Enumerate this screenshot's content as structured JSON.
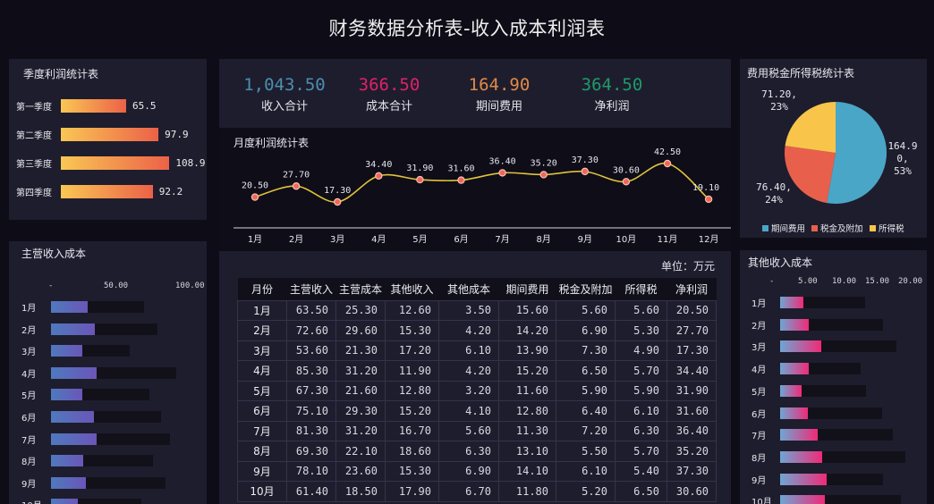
{
  "header": {
    "title": "财务数据分析表-收入成本利润表"
  },
  "quarter_panel": {
    "title": "季度利润统计表",
    "items": [
      {
        "label": "第一季度",
        "value": "65.5",
        "num": 65.5
      },
      {
        "label": "第二季度",
        "value": "97.9",
        "num": 97.9
      },
      {
        "label": "第三季度",
        "value": "108.9",
        "num": 108.9
      },
      {
        "label": "第四季度",
        "value": "92.2",
        "num": 92.2
      }
    ],
    "colors": {
      "start": "#f9c754",
      "end": "#ec6148"
    }
  },
  "kpis": [
    {
      "value": "1,043.50",
      "label": "收入合计",
      "color": "#4a8fb0"
    },
    {
      "value": "366.50",
      "label": "成本合计",
      "color": "#e0206a"
    },
    {
      "value": "164.90",
      "label": "期间费用",
      "color": "#e08a48"
    },
    {
      "value": "364.50",
      "label": "净利润",
      "color": "#1f9a6a"
    }
  ],
  "monthly_chart": {
    "title": "月度利润统计表",
    "months": [
      "1月",
      "2月",
      "3月",
      "4月",
      "5月",
      "6月",
      "7月",
      "8月",
      "9月",
      "10月",
      "11月",
      "12月"
    ],
    "values": [
      "20.50",
      "27.70",
      "17.30",
      "34.40",
      "31.90",
      "31.60",
      "36.40",
      "35.20",
      "37.30",
      "30.60",
      "42.50",
      "19.10"
    ],
    "line_color": "#e2c23a",
    "point_color": "#f0665a"
  },
  "pie_panel": {
    "title": "费用税金所得税统计表",
    "slices": [
      {
        "name": "期间费用",
        "value": "164.90",
        "percent": "53%",
        "label_lines": [
          "164.9",
          "0,",
          "53%"
        ],
        "color": "#4aa6c6"
      },
      {
        "name": "税金及附加",
        "value": "76.40",
        "percent": "24%",
        "label_lines": [
          "76.40,",
          "24%"
        ],
        "color": "#e8604c"
      },
      {
        "name": "所得税",
        "value": "71.20",
        "percent": "23%",
        "label_lines": [
          "71.20,",
          "23%"
        ],
        "color": "#f8c54a"
      }
    ]
  },
  "main_income_panel": {
    "title": "主营收入成本",
    "axis_ticks": [
      "-",
      "50.00",
      "100.00"
    ],
    "months": [
      "1月",
      "2月",
      "3月",
      "4月",
      "5月",
      "6月",
      "7月",
      "8月",
      "9月",
      "10月"
    ],
    "income": [
      63.5,
      72.6,
      53.6,
      85.3,
      67.3,
      75.1,
      81.3,
      69.3,
      78.1,
      61.4
    ],
    "cost": [
      25.3,
      29.6,
      21.3,
      31.2,
      21.6,
      29.3,
      31.2,
      22.1,
      23.6,
      18.5
    ]
  },
  "other_income_panel": {
    "title": "其他收入成本",
    "axis_ticks": [
      "-",
      "5.00",
      "10.00",
      "15.00",
      "20.00"
    ],
    "months": [
      "1月",
      "2月",
      "3月",
      "4月",
      "5月",
      "6月",
      "7月",
      "8月",
      "9月",
      "10月"
    ],
    "income": [
      12.6,
      15.3,
      17.2,
      11.9,
      12.8,
      15.2,
      16.7,
      18.6,
      15.3,
      17.9
    ],
    "cost": [
      3.5,
      4.2,
      6.1,
      4.2,
      3.2,
      4.1,
      5.6,
      6.3,
      6.9,
      6.7
    ]
  },
  "table": {
    "unit": "单位：万元",
    "headers": [
      "月份",
      "主营收入",
      "主营成本",
      "其他收入",
      "其他成本",
      "期间费用",
      "税金及附加",
      "所得税",
      "净利润"
    ],
    "rows": [
      [
        "1月",
        "63.50",
        "25.30",
        "12.60",
        "3.50",
        "15.60",
        "5.60",
        "5.60",
        "20.50"
      ],
      [
        "2月",
        "72.60",
        "29.60",
        "15.30",
        "4.20",
        "14.20",
        "6.90",
        "5.30",
        "27.70"
      ],
      [
        "3月",
        "53.60",
        "21.30",
        "17.20",
        "6.10",
        "13.90",
        "7.30",
        "4.90",
        "17.30"
      ],
      [
        "4月",
        "85.30",
        "31.20",
        "11.90",
        "4.20",
        "15.20",
        "6.50",
        "5.70",
        "34.40"
      ],
      [
        "5月",
        "67.30",
        "21.60",
        "12.80",
        "3.20",
        "11.60",
        "5.90",
        "5.90",
        "31.90"
      ],
      [
        "6月",
        "75.10",
        "29.30",
        "15.20",
        "4.10",
        "12.80",
        "6.40",
        "6.10",
        "31.60"
      ],
      [
        "7月",
        "81.30",
        "31.20",
        "16.70",
        "5.60",
        "11.30",
        "7.20",
        "6.30",
        "36.40"
      ],
      [
        "8月",
        "69.30",
        "22.10",
        "18.60",
        "6.30",
        "13.10",
        "5.50",
        "5.70",
        "35.20"
      ],
      [
        "9月",
        "78.10",
        "23.60",
        "15.30",
        "6.90",
        "14.10",
        "6.10",
        "5.40",
        "37.30"
      ],
      [
        "10月",
        "61.40",
        "18.50",
        "17.90",
        "6.70",
        "11.80",
        "5.20",
        "6.50",
        "30.60"
      ]
    ]
  }
}
